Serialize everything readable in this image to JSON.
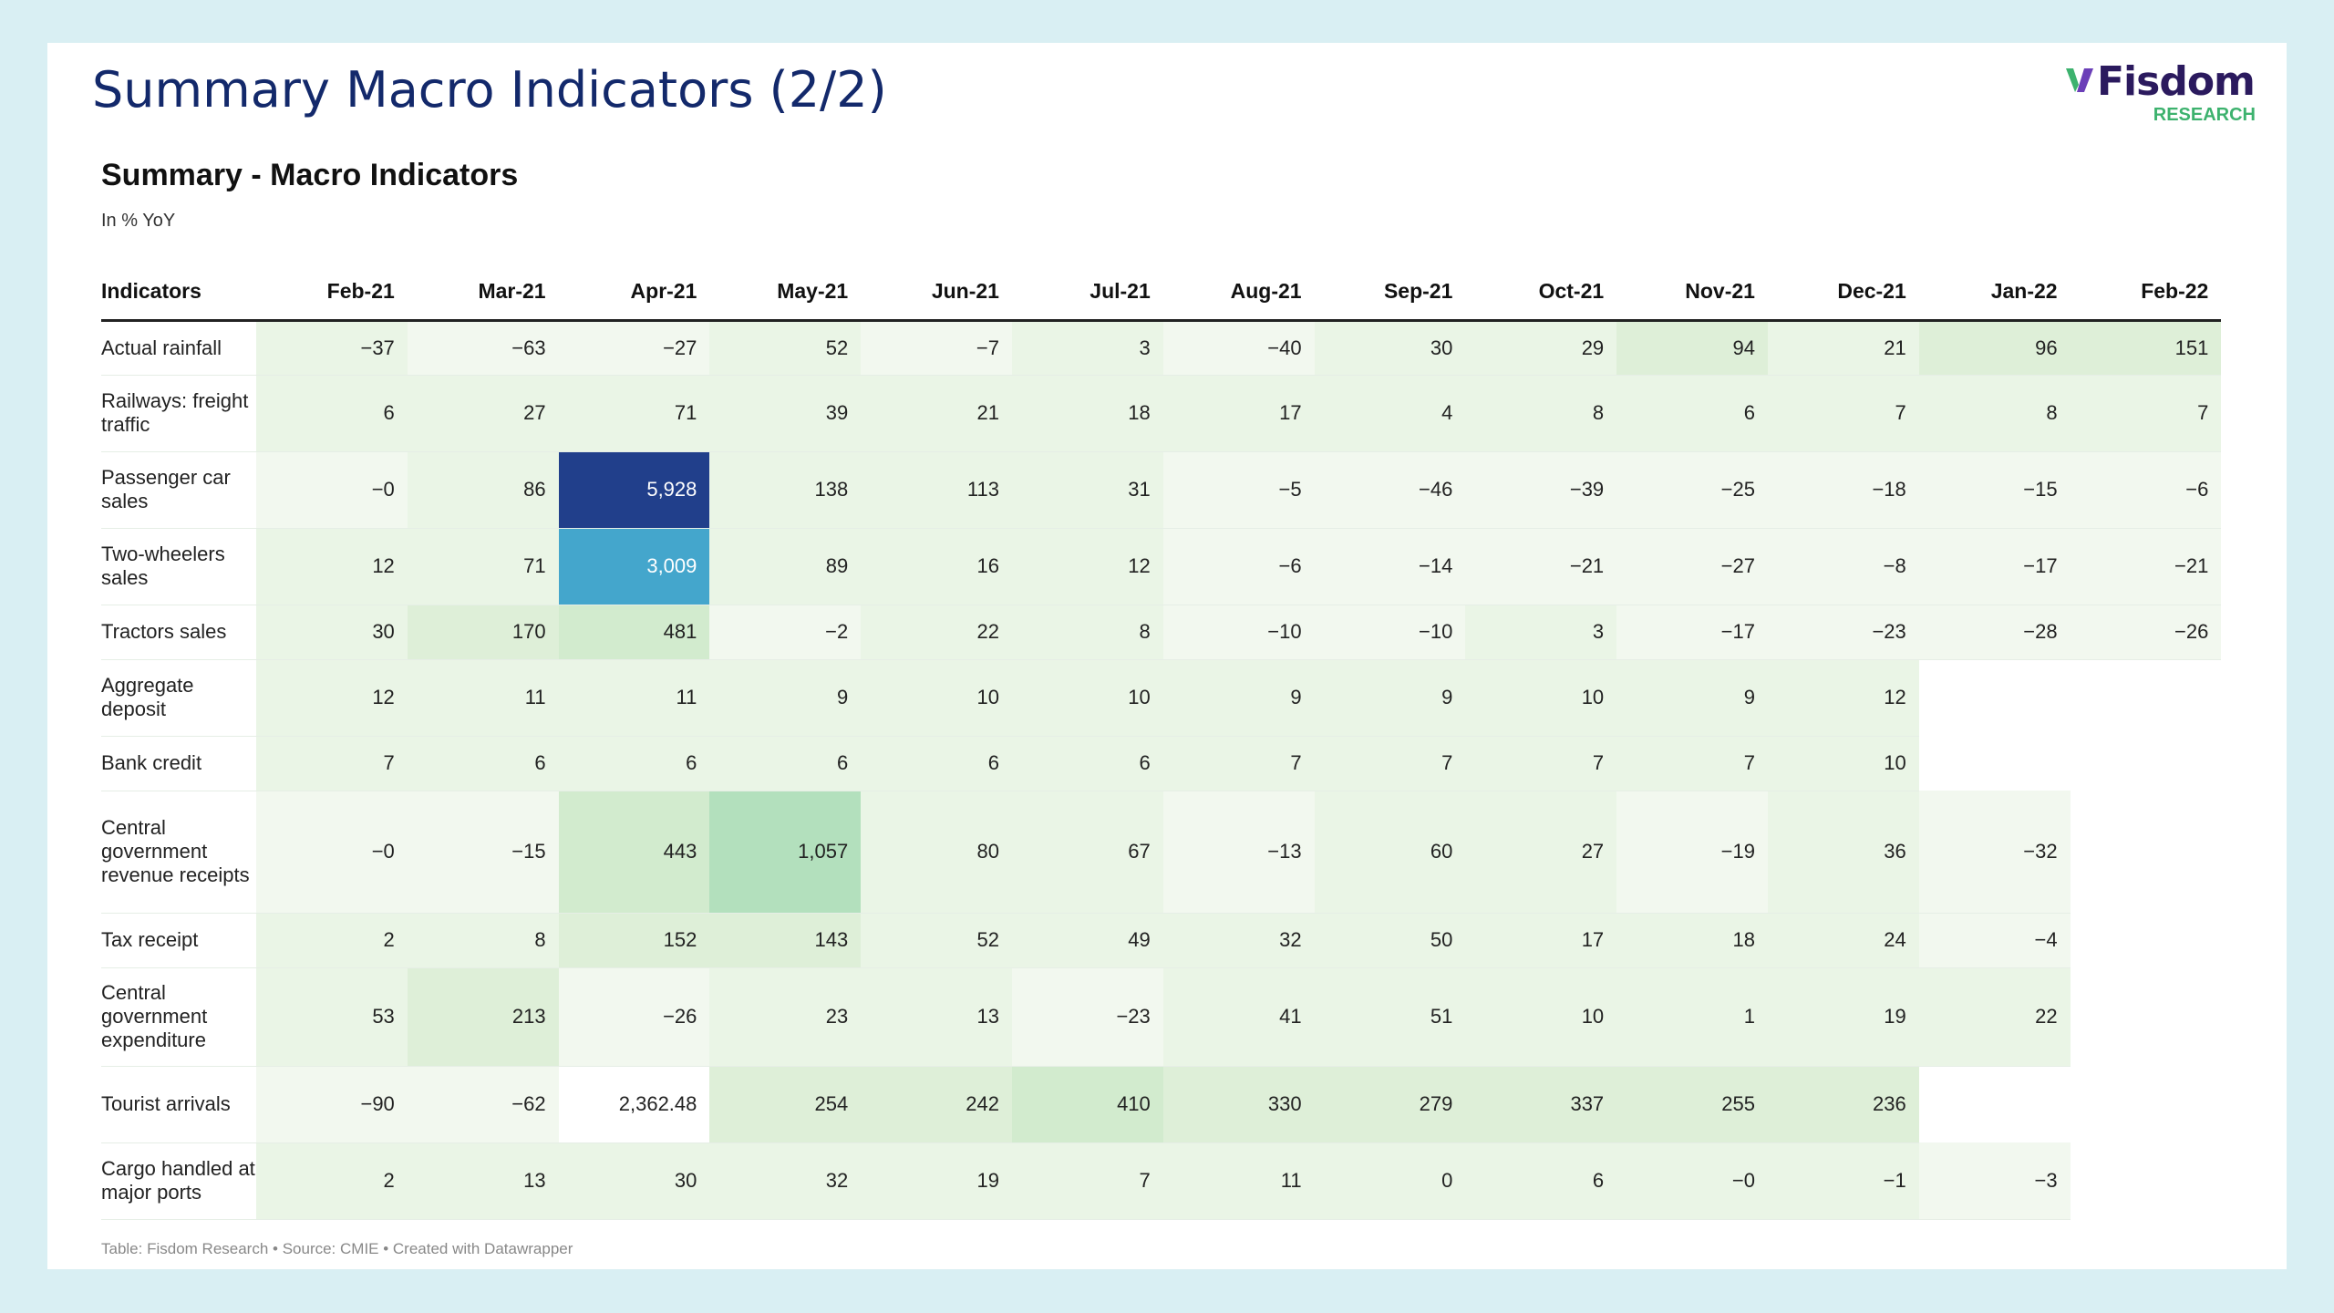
{
  "slide": {
    "title": "Summary Macro Indicators (2/2)",
    "logo_name": "Fisdom",
    "logo_sub": "RESEARCH",
    "logo_color": "#2b1a5e",
    "logo_accent": "#3db26e"
  },
  "table_title": "Summary - Macro Indicators",
  "table_subtitle": "In % YoY",
  "header_label": "Indicators",
  "months": [
    "Feb-21",
    "Mar-21",
    "Apr-21",
    "May-21",
    "Jun-21",
    "Jul-21",
    "Aug-21",
    "Sep-21",
    "Oct-21",
    "Nov-21",
    "Dec-21",
    "Jan-22",
    "Feb-22"
  ],
  "rows": [
    {
      "label": "Actual rainfall",
      "values": [
        "−37",
        "−63",
        "−27",
        "52",
        "−7",
        "3",
        "−40",
        "30",
        "29",
        "94",
        "21",
        "96",
        "151"
      ]
    },
    {
      "label": "Railways: freight traffic",
      "values": [
        "6",
        "27",
        "71",
        "39",
        "21",
        "18",
        "17",
        "4",
        "8",
        "6",
        "7",
        "8",
        "7"
      ]
    },
    {
      "label": "Passenger car sales",
      "values": [
        "−0",
        "86",
        "5,928",
        "138",
        "113",
        "31",
        "−5",
        "−46",
        "−39",
        "−25",
        "−18",
        "−15",
        "−6"
      ]
    },
    {
      "label": "Two-wheelers sales",
      "values": [
        "12",
        "71",
        "3,009",
        "89",
        "16",
        "12",
        "−6",
        "−14",
        "−21",
        "−27",
        "−8",
        "−17",
        "−21"
      ]
    },
    {
      "label": "Tractors sales",
      "values": [
        "30",
        "170",
        "481",
        "−2",
        "22",
        "8",
        "−10",
        "−10",
        "3",
        "−17",
        "−23",
        "−28",
        "−26"
      ]
    },
    {
      "label": "Aggregate deposit",
      "values": [
        "12",
        "11",
        "11",
        "9",
        "10",
        "10",
        "9",
        "9",
        "10",
        "9",
        "12",
        "",
        ""
      ]
    },
    {
      "label": "Bank credit",
      "values": [
        "7",
        "6",
        "6",
        "6",
        "6",
        "6",
        "7",
        "7",
        "7",
        "7",
        "10",
        "",
        ""
      ]
    },
    {
      "label": "Central government revenue receipts",
      "values": [
        "−0",
        "−15",
        "443",
        "1,057",
        "80",
        "67",
        "−13",
        "60",
        "27",
        "−19",
        "36",
        "−32",
        ""
      ]
    },
    {
      "label": "Tax receipt",
      "values": [
        "2",
        "8",
        "152",
        "143",
        "52",
        "49",
        "32",
        "50",
        "17",
        "18",
        "24",
        "−4",
        ""
      ]
    },
    {
      "label": "Central government expenditure",
      "values": [
        "53",
        "213",
        "−26",
        "23",
        "13",
        "−23",
        "41",
        "51",
        "10",
        "1",
        "19",
        "22",
        ""
      ]
    },
    {
      "label": "Tourist arrivals",
      "values": [
        "−90",
        "−62",
        "2,362.48",
        "254",
        "242",
        "410",
        "330",
        "279",
        "337",
        "255",
        "236",
        "",
        ""
      ]
    },
    {
      "label": "Cargo handled at major ports",
      "values": [
        "2",
        "13",
        "30",
        "32",
        "19",
        "7",
        "11",
        "0",
        "6",
        "−0",
        "−1",
        "−3",
        ""
      ]
    }
  ],
  "row_heights": [
    60,
    84,
    84,
    84,
    60,
    84,
    60,
    134,
    60,
    108,
    84,
    84
  ],
  "footer": "Table: Fisdom Research • Source: CMIE • Created with Datawrapper"
}
